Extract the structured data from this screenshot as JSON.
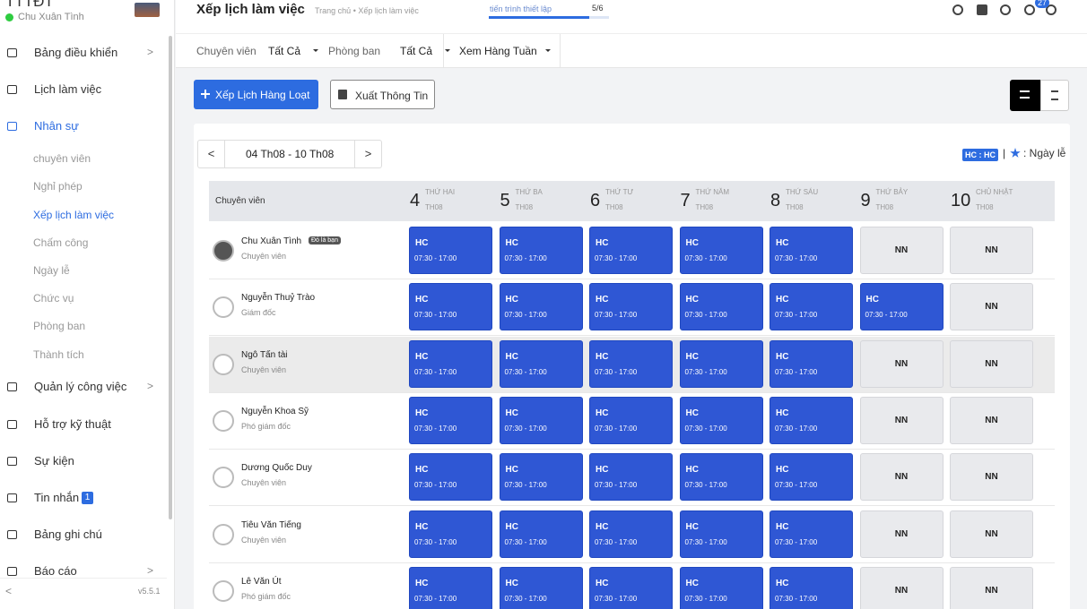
{
  "sidebar": {
    "brand": "TTTĐT",
    "user": "Chu Xuân Tình",
    "menu": [
      {
        "label": "Bảng điều khiển",
        "arrow": ">"
      },
      {
        "label": "Lịch làm việc"
      },
      {
        "label": "Nhân sự",
        "active": true
      }
    ],
    "submenu": [
      {
        "label": "chuyên viên"
      },
      {
        "label": "Nghỉ phép"
      },
      {
        "label": "Xếp lịch làm việc",
        "active": true
      },
      {
        "label": "Chấm công"
      },
      {
        "label": "Ngày lễ"
      },
      {
        "label": "Chức vụ"
      },
      {
        "label": "Phòng ban"
      },
      {
        "label": "Thành tích"
      }
    ],
    "menu2": [
      {
        "label": "Quản lý công việc",
        "arrow": ">"
      },
      {
        "label": "Hỗ trợ kỹ thuật"
      },
      {
        "label": "Sự kiện"
      },
      {
        "label": "Tin nhắn",
        "badge": "1"
      },
      {
        "label": "Bảng ghi chú"
      },
      {
        "label": "Báo cáo",
        "arrow": ">"
      }
    ],
    "collapse": "<",
    "version": "v5.5.1"
  },
  "header": {
    "title": "Xếp lịch làm việc",
    "breadcrumb": "Trang chủ • Xếp lịch làm việc",
    "progress_label": "tiến trình thiết lập",
    "progress": "5/6",
    "notifications": "27"
  },
  "filters": [
    {
      "label": "Chuyên viên",
      "value": "Tất Cả"
    },
    {
      "label": "Phòng ban",
      "value": "Tất Cả"
    },
    {
      "label": "",
      "value": "Xem Hàng Tuần"
    }
  ],
  "buttons": {
    "bulk": "Xếp Lịch Hàng Loạt",
    "export": "Xuất Thông Tin"
  },
  "week": {
    "prev": "<",
    "range": "04 Th08 - 10 Th08",
    "next": ">"
  },
  "legend": {
    "code": "HC : HC",
    "separator": "|",
    "holiday": ": Ngày lễ"
  },
  "table": {
    "first_header": "Chuyên viên",
    "days": [
      {
        "num": "4",
        "name": "THỨ HAI",
        "month": "TH08"
      },
      {
        "num": "5",
        "name": "THỨ BA",
        "month": "TH08"
      },
      {
        "num": "6",
        "name": "THỨ TƯ",
        "month": "TH08"
      },
      {
        "num": "7",
        "name": "THỨ NĂM",
        "month": "TH08"
      },
      {
        "num": "8",
        "name": "THỨ SÁU",
        "month": "TH08"
      },
      {
        "num": "9",
        "name": "THỨ BẢY",
        "month": "TH08"
      },
      {
        "num": "10",
        "name": "CHỦ NHẬT",
        "month": "TH08"
      }
    ],
    "rows": [
      {
        "name": "Chu Xuân Tình",
        "badge": "Đó là bạn",
        "role": "Chuyên viên",
        "cells": [
          {
            "code": "HC",
            "time": "07:30 - 17:00"
          },
          {
            "code": "HC",
            "time": "07:30 - 17:00"
          },
          {
            "code": "HC",
            "time": "07:30 - 17:00"
          },
          {
            "code": "HC",
            "time": "07:30 - 17:00"
          },
          {
            "code": "HC",
            "time": "07:30 - 17:00"
          },
          {
            "code": "NN"
          },
          {
            "code": "NN"
          }
        ]
      },
      {
        "name": "Nguyễn Thuỷ Trào",
        "role": "Giám đốc",
        "cells": [
          {
            "code": "HC",
            "time": "07:30 - 17:00"
          },
          {
            "code": "HC",
            "time": "07:30 - 17:00"
          },
          {
            "code": "HC",
            "time": "07:30 - 17:00"
          },
          {
            "code": "HC",
            "time": "07:30 - 17:00"
          },
          {
            "code": "HC",
            "time": "07:30 - 17:00"
          },
          {
            "code": "HC",
            "time": "07:30 - 17:00"
          },
          {
            "code": "NN"
          }
        ]
      },
      {
        "name": "Ngô Tấn tài",
        "role": "Chuyên viên",
        "highlight": true,
        "cells": [
          {
            "code": "HC",
            "time": "07:30 - 17:00"
          },
          {
            "code": "HC",
            "time": "07:30 - 17:00"
          },
          {
            "code": "HC",
            "time": "07:30 - 17:00"
          },
          {
            "code": "HC",
            "time": "07:30 - 17:00"
          },
          {
            "code": "HC",
            "time": "07:30 - 17:00"
          },
          {
            "code": "NN"
          },
          {
            "code": "NN"
          }
        ]
      },
      {
        "name": "Nguyễn Khoa Sỹ",
        "role": "Phó giám đốc",
        "cells": [
          {
            "code": "HC",
            "time": "07:30 - 17:00"
          },
          {
            "code": "HC",
            "time": "07:30 - 17:00"
          },
          {
            "code": "HC",
            "time": "07:30 - 17:00"
          },
          {
            "code": "HC",
            "time": "07:30 - 17:00"
          },
          {
            "code": "HC",
            "time": "07:30 - 17:00"
          },
          {
            "code": "NN"
          },
          {
            "code": "NN"
          }
        ]
      },
      {
        "name": "Dương Quốc Duy",
        "role": "Chuyên viên",
        "cells": [
          {
            "code": "HC",
            "time": "07:30 - 17:00"
          },
          {
            "code": "HC",
            "time": "07:30 - 17:00"
          },
          {
            "code": "HC",
            "time": "07:30 - 17:00"
          },
          {
            "code": "HC",
            "time": "07:30 - 17:00"
          },
          {
            "code": "HC",
            "time": "07:30 - 17:00"
          },
          {
            "code": "NN"
          },
          {
            "code": "NN"
          }
        ]
      },
      {
        "name": "Tiêu Văn Tiếng",
        "role": "Chuyên viên",
        "cells": [
          {
            "code": "HC",
            "time": "07:30 - 17:00"
          },
          {
            "code": "HC",
            "time": "07:30 - 17:00"
          },
          {
            "code": "HC",
            "time": "07:30 - 17:00"
          },
          {
            "code": "HC",
            "time": "07:30 - 17:00"
          },
          {
            "code": "HC",
            "time": "07:30 - 17:00"
          },
          {
            "code": "NN"
          },
          {
            "code": "NN"
          }
        ]
      },
      {
        "name": "Lê Văn Út",
        "role": "Phó giám đốc",
        "cells": [
          {
            "code": "HC",
            "time": "07:30 - 17:00"
          },
          {
            "code": "HC",
            "time": "07:30 - 17:00"
          },
          {
            "code": "HC",
            "time": "07:30 - 17:00"
          },
          {
            "code": "HC",
            "time": "07:30 - 17:00"
          },
          {
            "code": "HC",
            "time": "07:30 - 17:00"
          },
          {
            "code": "NN"
          },
          {
            "code": "NN"
          }
        ]
      }
    ]
  }
}
